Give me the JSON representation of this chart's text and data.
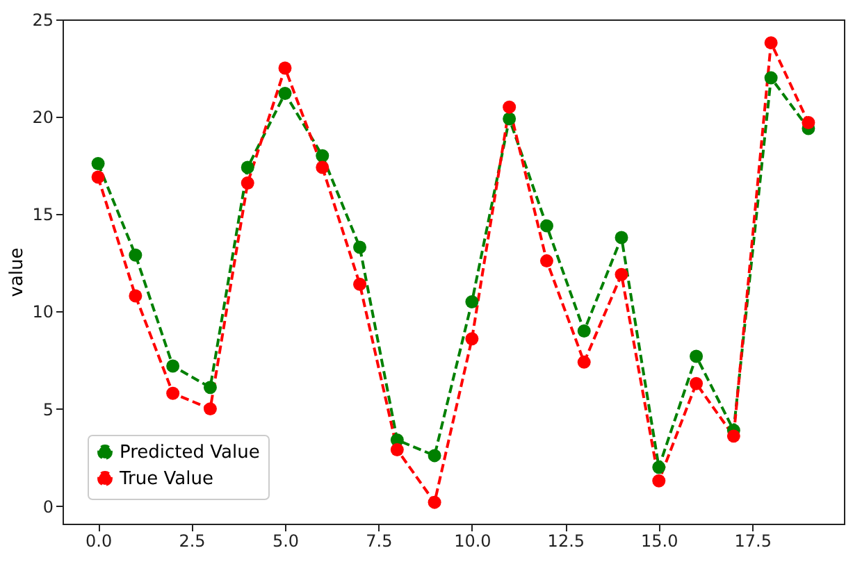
{
  "chart_data": {
    "type": "line",
    "ylabel": "value",
    "x": [
      0,
      1,
      2,
      3,
      4,
      5,
      6,
      7,
      8,
      9,
      10,
      11,
      12,
      13,
      14,
      15,
      16,
      17,
      18,
      19
    ],
    "xlim": [
      -0.95,
      19.95
    ],
    "xticks": [
      {
        "value": 0,
        "label": "0.0"
      },
      2.5,
      {
        "value": 5,
        "label": "5.0"
      },
      7.5,
      {
        "value": 10,
        "label": "10.0"
      },
      12.5,
      {
        "value": 15,
        "label": "15.0"
      },
      17.5
    ],
    "ylim": [
      -0.9,
      25
    ],
    "yticks": [
      0,
      5,
      10,
      15,
      20,
      25
    ],
    "marker": "circle",
    "line_style": "dashed",
    "legend": "bottom left",
    "grid": false,
    "series": [
      {
        "name": "Predicted Value",
        "color": "#008000",
        "values": [
          17.6,
          12.9,
          7.2,
          6.1,
          17.4,
          21.2,
          18.0,
          13.3,
          3.4,
          2.6,
          10.5,
          19.9,
          14.4,
          9.0,
          13.8,
          2.0,
          7.7,
          3.9,
          22.0,
          19.4
        ]
      },
      {
        "name": "True Value",
        "color": "#ff0000",
        "values": [
          16.9,
          10.8,
          5.8,
          5.0,
          16.6,
          22.5,
          17.4,
          11.4,
          2.9,
          0.2,
          8.6,
          20.5,
          12.6,
          7.4,
          11.9,
          1.3,
          6.3,
          3.6,
          23.8,
          19.7
        ]
      }
    ]
  }
}
